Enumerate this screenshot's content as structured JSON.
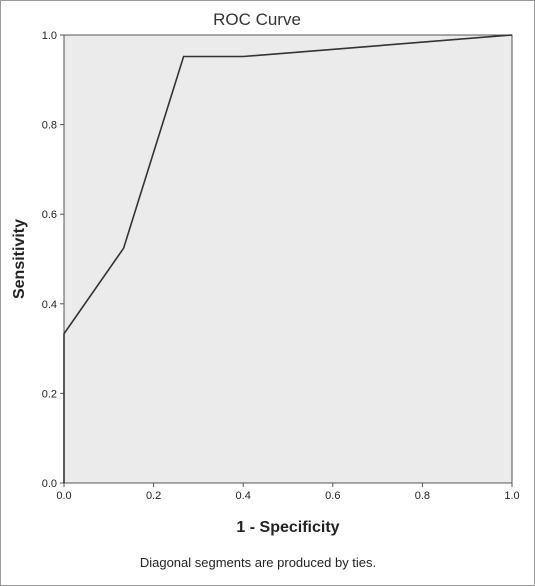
{
  "chart_data": {
    "type": "line",
    "title": "ROC Curve",
    "xlabel": "1 - Specificity",
    "ylabel": "Sensitivity",
    "footnote": "Diagonal segments are produced by ties.",
    "xlim": [
      0.0,
      1.0
    ],
    "ylim": [
      0.0,
      1.0
    ],
    "xticks": [
      "0.0",
      "0.2",
      "0.4",
      "0.6",
      "0.8",
      "1.0"
    ],
    "yticks": [
      "0.0",
      "0.2",
      "0.4",
      "0.6",
      "0.8",
      "1.0"
    ],
    "grid": false,
    "plot_background": "#ebebeb",
    "line_color": "#333333",
    "series": [
      {
        "x": [
          0.0,
          0.0,
          0.133,
          0.267,
          0.4,
          1.0
        ],
        "y": [
          0.0,
          0.333,
          0.524,
          0.952,
          0.952,
          1.0
        ]
      }
    ]
  }
}
